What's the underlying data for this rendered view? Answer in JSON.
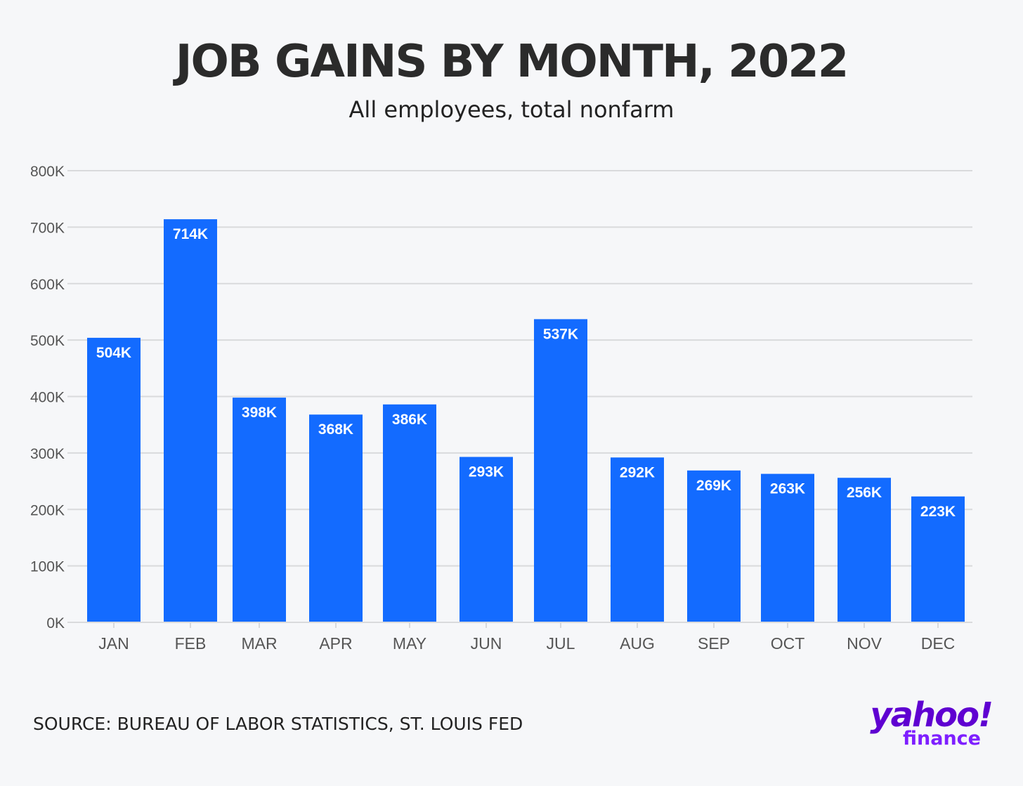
{
  "header": {
    "title": "JOB GAINS BY MONTH, 2022",
    "subtitle": "All employees, total nonfarm"
  },
  "footer": {
    "source": "SOURCE: BUREAU OF LABOR STATISTICS, ST. LOUIS FED",
    "logo_text": "yahoo!",
    "logo_subtext": "finance"
  },
  "colors": {
    "bar": "#136bff",
    "gridline": "#d9dadc",
    "logo_yahoo": "#5f01d1",
    "logo_finance": "#7e1fff"
  },
  "chart_data": {
    "type": "bar",
    "title": "JOB GAINS BY MONTH, 2022",
    "subtitle": "All employees, total nonfarm",
    "categories": [
      "JAN",
      "FEB",
      "MAR",
      "APR",
      "MAY",
      "JUN",
      "JUL",
      "AUG",
      "SEP",
      "OCT",
      "NOV",
      "DEC"
    ],
    "values": [
      504,
      714,
      398,
      368,
      386,
      293,
      537,
      292,
      269,
      263,
      256,
      223
    ],
    "value_labels": [
      "504K",
      "714K",
      "398K",
      "368K",
      "386K",
      "293K",
      "537K",
      "292K",
      "269K",
      "263K",
      "256K",
      "223K"
    ],
    "y_ticks": [
      0,
      100,
      200,
      300,
      400,
      500,
      600,
      700,
      800
    ],
    "y_tick_labels": [
      "0K",
      "100K",
      "200K",
      "300K",
      "400K",
      "500K",
      "600K",
      "700K",
      "800K"
    ],
    "ylim": [
      0,
      800
    ],
    "xlabel": "",
    "ylabel": "",
    "grid": true,
    "legend": "none"
  }
}
